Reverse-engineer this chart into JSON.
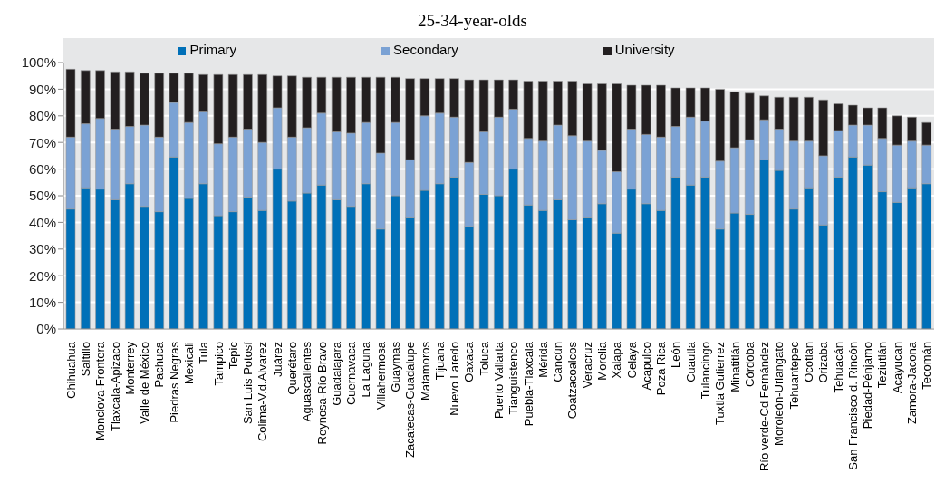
{
  "chart_data": {
    "type": "bar",
    "title": "25-34-year-olds",
    "stacked": true,
    "legend": "top",
    "grid": "y",
    "categories": [
      "Chihuahua",
      "Saltillo",
      "Monclova-Frontera",
      "Tlaxcala-Apizaco",
      "Monterrey",
      "Valle de México",
      "Pachuca",
      "Piedras Negras",
      "Mexicali",
      "Tula",
      "Tampico",
      "Tepic",
      "San Luis Potosí",
      "Colima-V.d.Alvarez",
      "Juárez",
      "Querétaro",
      "Aguascalientes",
      "Reynosa-Río Bravo",
      "Guadalajara",
      "Cuernavaca",
      "La Laguna",
      "Villahermosa",
      "Guaymas",
      "Zacatecas-Guadalupe",
      "Matamoros",
      "Tijuana",
      "Nuevo Laredo",
      "Oaxaca",
      "Toluca",
      "Puerto Vallarta",
      "Tianguistenco",
      "Puebla-Tlaxcala",
      "Mérida",
      "Cancún",
      "Coatzacoalcos",
      "Veracruz",
      "Morelia",
      "Xalapa",
      "Celaya",
      "Acapulco",
      "Poza Rica",
      "León",
      "Cuautla",
      "Tulancingo",
      "Tuxtla Gutierrez",
      "Minatitlán",
      "Córdoba",
      "Río verde-Cd Fernández",
      "Moroleón-Uriangato",
      "Tehuantepec",
      "Ocotlán",
      "Orizaba",
      "Tehuacán",
      "San Francisco d. Rincón",
      "Piedad-Pénjamo",
      "Teziutlán",
      "Acayucan",
      "Zamora-Jacona",
      "Tecomán"
    ],
    "series": [
      {
        "name": "Primary",
        "color": "#0070b8",
        "values": [
          45,
          53,
          52.5,
          48.5,
          54.5,
          46,
          44,
          64.5,
          49,
          54.5,
          42.5,
          44,
          49.5,
          44.5,
          60,
          48,
          51,
          54,
          48.5,
          46,
          54.5,
          37.5,
          50,
          42,
          52,
          54.5,
          57,
          38.5,
          50.5,
          50,
          60,
          46.5,
          44.5,
          48.5,
          41,
          42,
          47,
          36,
          52.5,
          47,
          44.5,
          57,
          54,
          57,
          37.5,
          43.5,
          43,
          63.5,
          59.5,
          45,
          53,
          39,
          57,
          64.5,
          61.5,
          51.5,
          47.5,
          53,
          54.5
        ]
      },
      {
        "name": "Secondary",
        "color": "#7ba2d4",
        "values": [
          27,
          24,
          26.5,
          26.5,
          21.5,
          30.5,
          28,
          20.5,
          28.5,
          27,
          27,
          28,
          25.5,
          25.5,
          23,
          24,
          24.5,
          27,
          25.5,
          27.5,
          23,
          28.5,
          27.5,
          21.5,
          28,
          26.5,
          22.5,
          24,
          23.5,
          29.5,
          22.5,
          25,
          26,
          28,
          31.5,
          28.5,
          20,
          23,
          22.5,
          26,
          27.5,
          19,
          25.5,
          21,
          25.5,
          24.5,
          28,
          15,
          15.5,
          25.5,
          17.5,
          26,
          17.5,
          12,
          15,
          20,
          21.5,
          17.5,
          14.5
        ]
      },
      {
        "name": "University",
        "color": "#231f20",
        "values": [
          25.5,
          20,
          18,
          21.5,
          20.5,
          19.5,
          24,
          11,
          18.5,
          14,
          26,
          23.5,
          20.5,
          25.5,
          12,
          23,
          19,
          13.5,
          20.5,
          21,
          17,
          28.5,
          17,
          30.5,
          14,
          13,
          14.5,
          31,
          19.5,
          14,
          11,
          21.5,
          22.5,
          16.5,
          20.5,
          21.5,
          25,
          33,
          16.5,
          18.5,
          19.5,
          14.5,
          11,
          12.5,
          27,
          21,
          17.5,
          9,
          12,
          16.5,
          16.5,
          21,
          10,
          7.5,
          6.5,
          11.5,
          11,
          9,
          8.5
        ]
      }
    ],
    "ylim": [
      0,
      100
    ],
    "yticks": [
      {
        "value": 0,
        "label": "0%"
      },
      {
        "value": 10,
        "label": "10%"
      },
      {
        "value": 20,
        "label": "20%"
      },
      {
        "value": 30,
        "label": "30%"
      },
      {
        "value": 40,
        "label": "40%"
      },
      {
        "value": 50,
        "label": "50%"
      },
      {
        "value": 60,
        "label": "60%"
      },
      {
        "value": 70,
        "label": "70%"
      },
      {
        "value": 80,
        "label": "80%"
      },
      {
        "value": 90,
        "label": "90%"
      },
      {
        "value": 100,
        "label": "100%"
      }
    ]
  }
}
